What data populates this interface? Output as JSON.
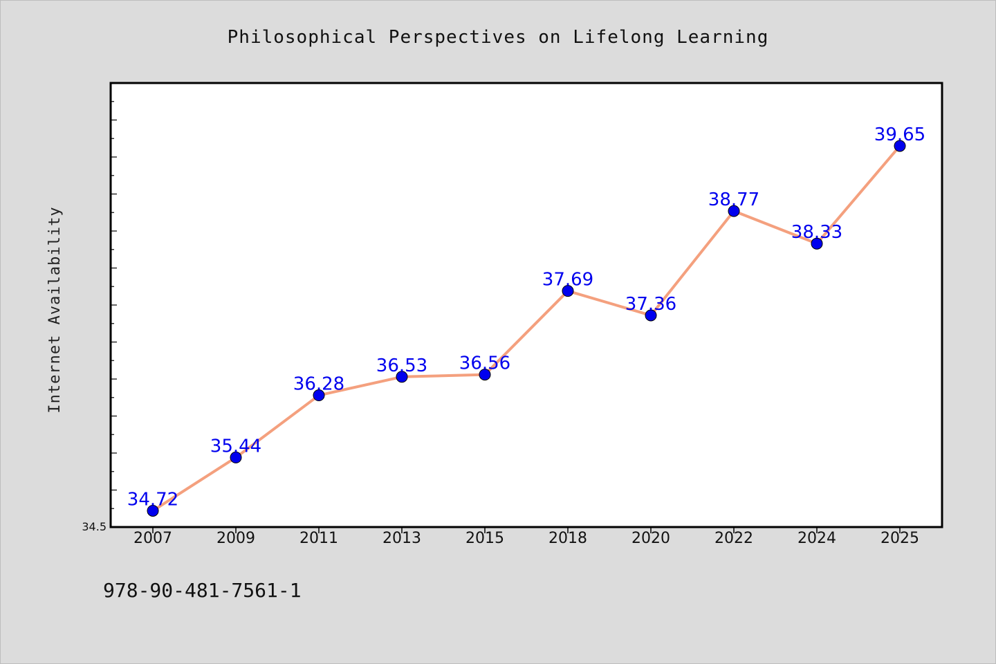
{
  "chart_data": {
    "type": "line",
    "title": "Philosophical Perspectives on Lifelong Learning",
    "ylabel": "Internet Availability",
    "xlabel": "",
    "categories": [
      "2007",
      "2009",
      "2011",
      "2013",
      "2015",
      "2018",
      "2020",
      "2022",
      "2024",
      "2025"
    ],
    "series": [
      {
        "values": [
          34.72,
          35.44,
          36.28,
          36.53,
          36.56,
          37.69,
          37.36,
          38.77,
          38.33,
          39.65
        ],
        "line_color": "#f4a07e",
        "marker_color": "#0000ee"
      }
    ],
    "data_labels": [
      "34.72",
      "35.44",
      "36.28",
      "36.53",
      "36.56",
      "37.69",
      "37.36",
      "38.77",
      "38.33",
      "39.65"
    ],
    "ylim": [
      34.5,
      40.5
    ],
    "y_tick_labels": [
      "34.5"
    ],
    "grid": false,
    "legend": "none"
  },
  "footer": {
    "isbn": "978-90-481-7561-1"
  },
  "colors": {
    "background": "#dcdcdc",
    "plot_background": "#ffffff",
    "line": "#f4a07e",
    "marker": "#0000ee",
    "data_label": "#0000ee"
  }
}
